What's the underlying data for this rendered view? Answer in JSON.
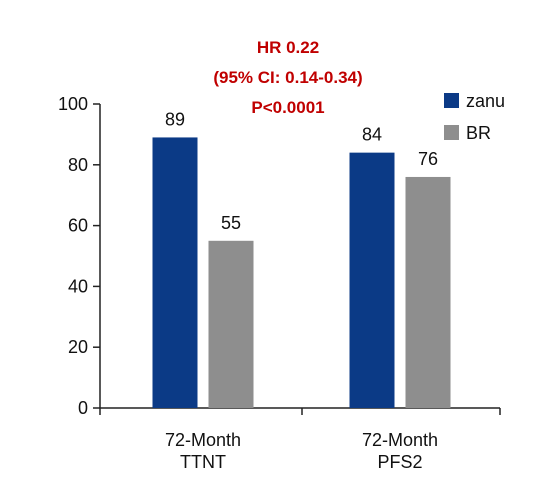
{
  "chart_data": {
    "type": "bar",
    "categories": [
      "72-Month\nTTNT",
      "72-Month\nPFS2"
    ],
    "series": [
      {
        "name": "zanu",
        "values": [
          89,
          84
        ],
        "color": "#0b3a86"
      },
      {
        "name": "BR",
        "values": [
          55,
          76
        ],
        "color": "#8e8e8e"
      }
    ],
    "ylim": [
      0,
      100
    ],
    "yticks": [
      0,
      20,
      40,
      60,
      80,
      100
    ],
    "title": "",
    "xlabel": "",
    "ylabel": "",
    "grid": false,
    "legend_position": "top-right",
    "annotation": {
      "lines": [
        "HR 0.22",
        "(95% CI: 0.14-0.34)",
        "P<0.0001"
      ],
      "color": "#c00000"
    }
  }
}
